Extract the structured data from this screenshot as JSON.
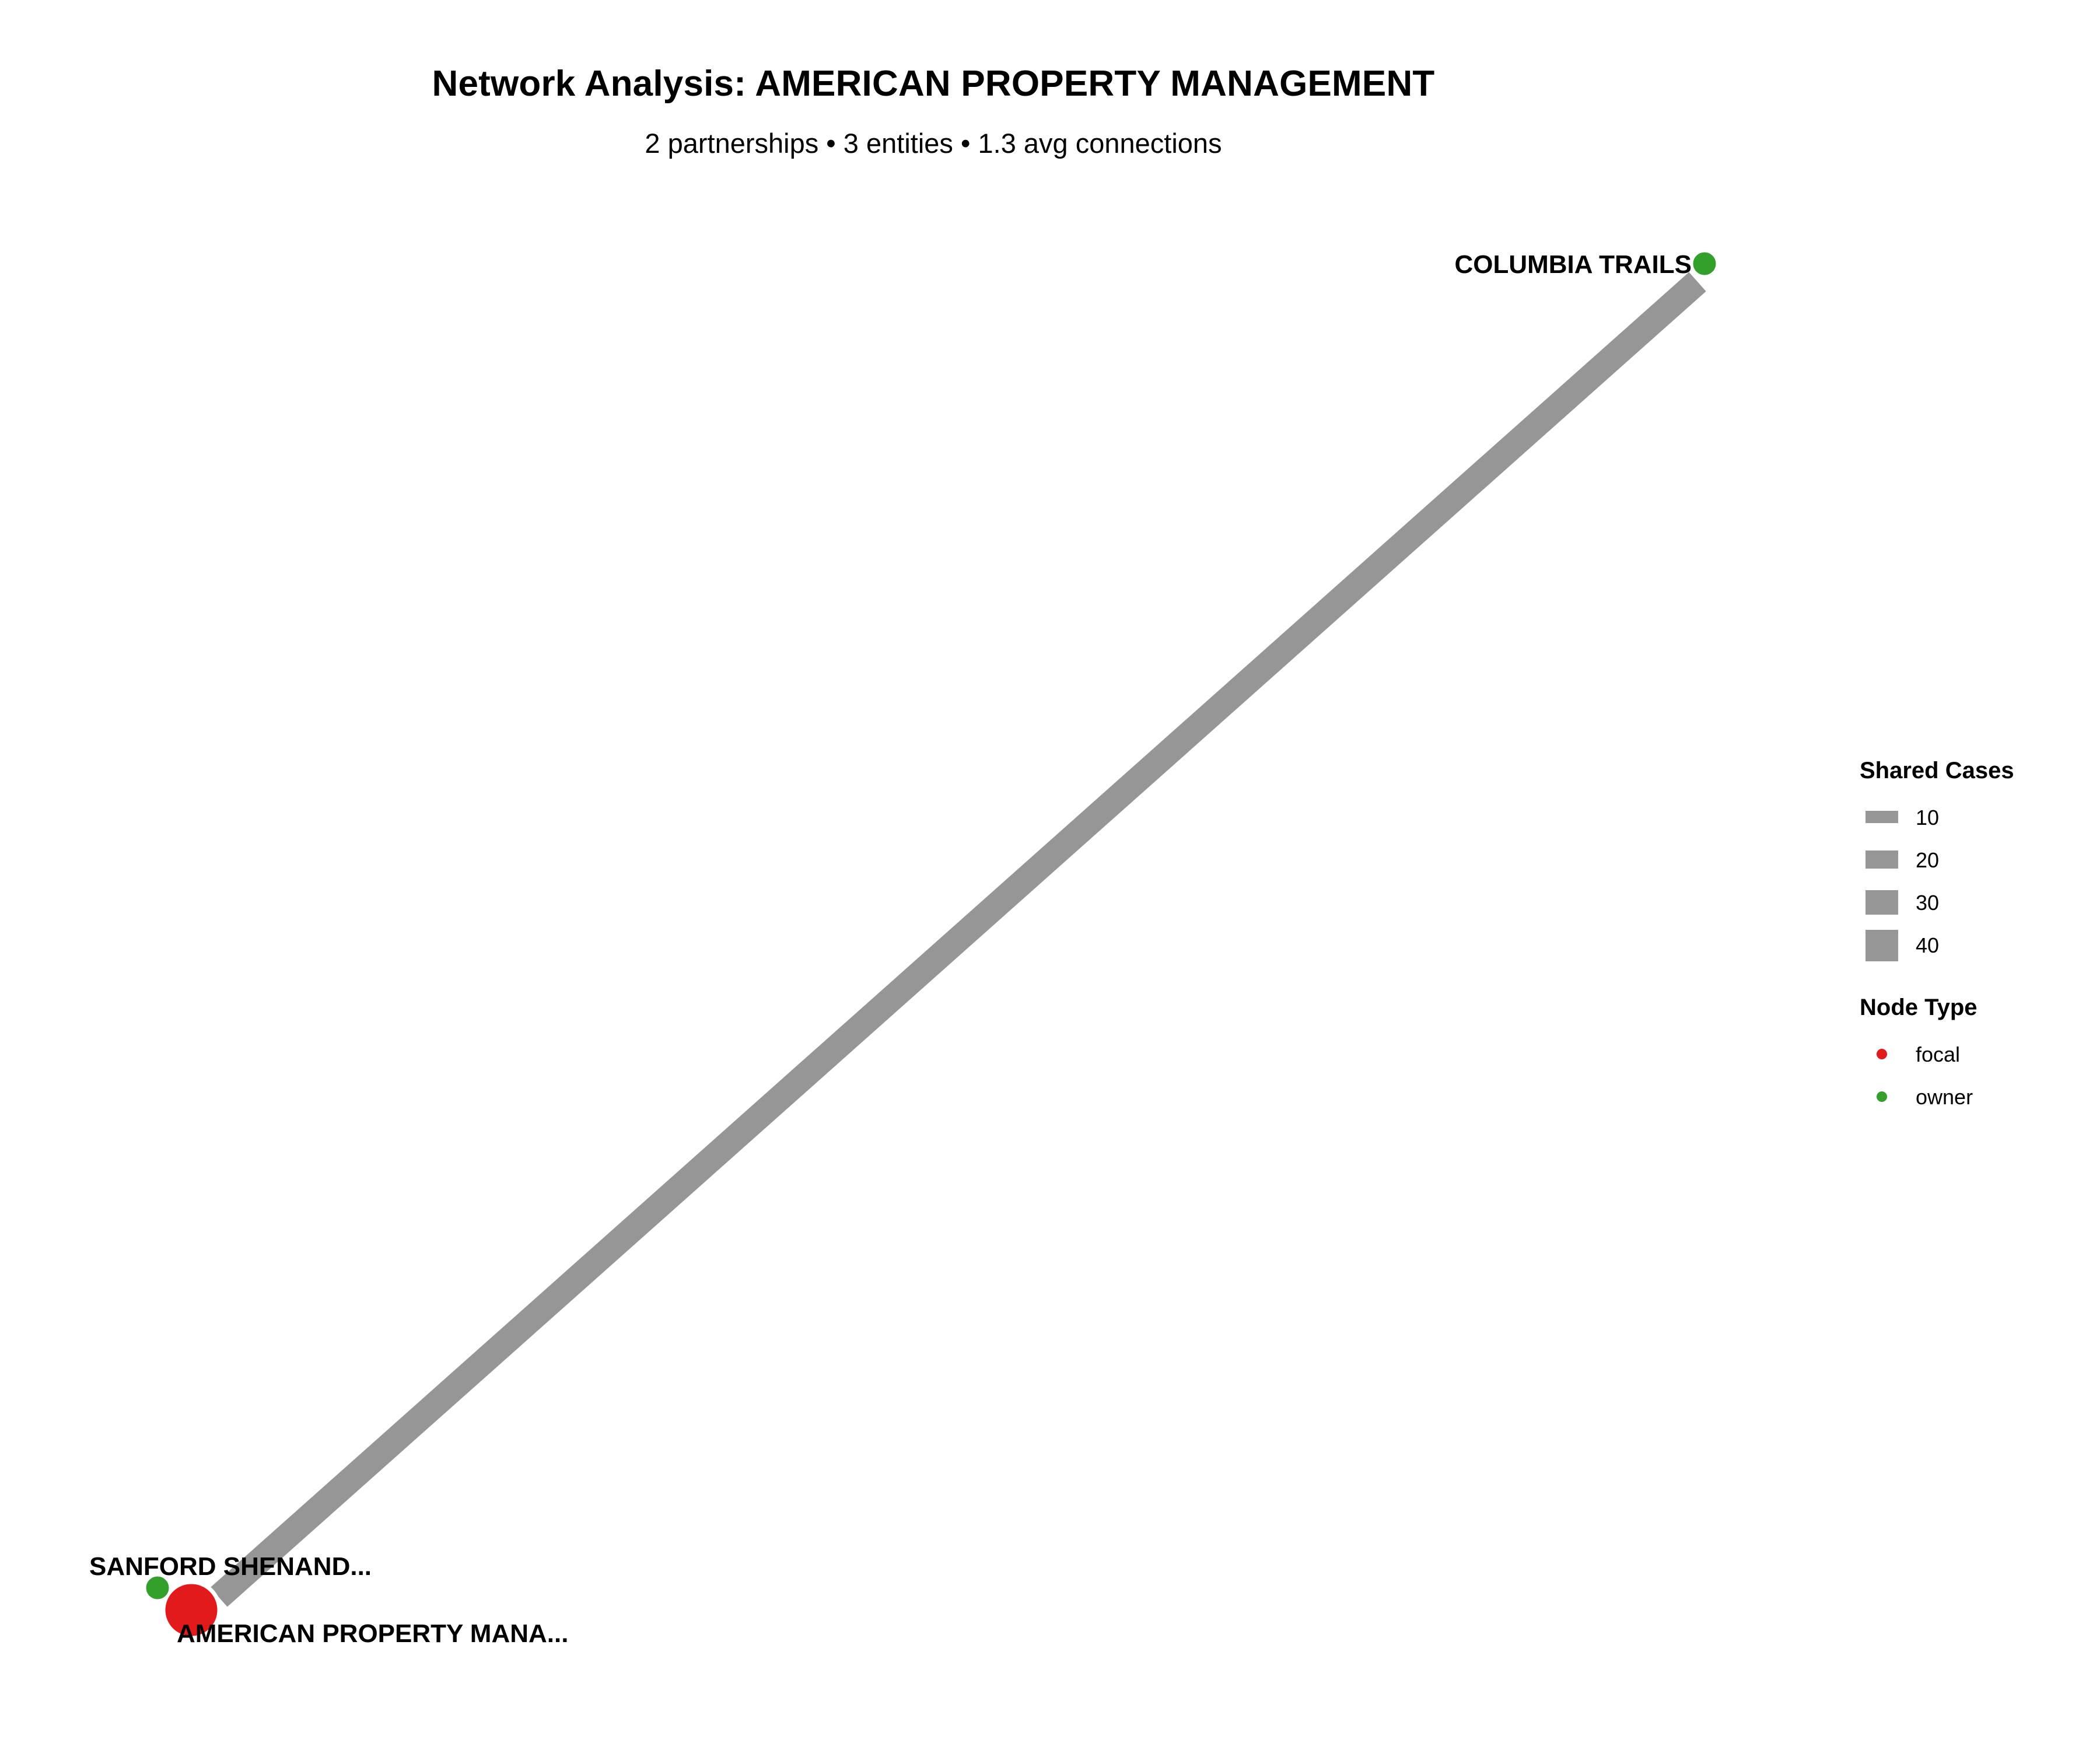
{
  "header": {
    "title": "Network Analysis: AMERICAN PROPERTY MANAGEMENT",
    "subtitle": "2 partnerships • 3 entities • 1.3 avg connections"
  },
  "network": {
    "nodes": [
      {
        "id": "american",
        "label": "AMERICAN PROPERTY MANA...",
        "type": "focal"
      },
      {
        "id": "sanford",
        "label": "SANFORD SHENAND...",
        "type": "owner"
      },
      {
        "id": "columbia",
        "label": "COLUMBIA TRAILS",
        "type": "owner"
      }
    ],
    "edges": [
      {
        "from": "american",
        "to": "columbia",
        "shared_cases": 40
      },
      {
        "from": "american",
        "to": "sanford",
        "shared_cases": 1
      }
    ]
  },
  "legend": {
    "edge_title": "Shared Cases",
    "edge_items": [
      "10",
      "20",
      "30",
      "40"
    ],
    "node_title": "Node Type",
    "node_items": [
      {
        "label": "focal",
        "color": "#e31a1c"
      },
      {
        "label": "owner",
        "color": "#33a02c"
      }
    ]
  },
  "colors": {
    "edge": "#969696",
    "focal": "#e31a1c",
    "owner": "#33a02c"
  }
}
